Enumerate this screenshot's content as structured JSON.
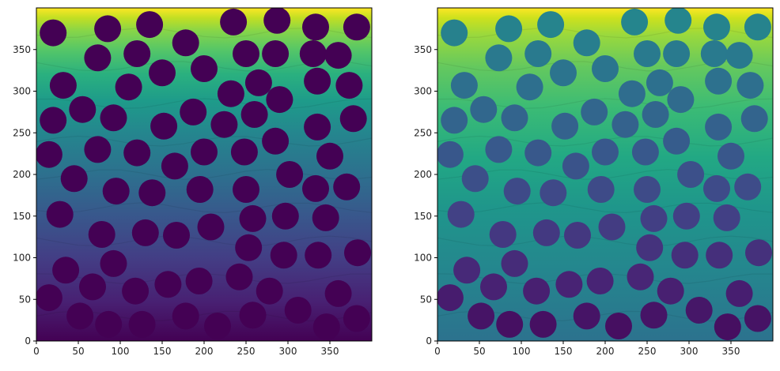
{
  "chart_data": [
    {
      "type": "heatmap",
      "title": "",
      "xlabel": "",
      "ylabel": "",
      "xlim": [
        0,
        400
      ],
      "ylim": [
        0,
        400
      ],
      "x_ticks": [
        "0",
        "50",
        "100",
        "150",
        "200",
        "250",
        "300",
        "350"
      ],
      "y_ticks": [
        "0",
        "50",
        "100",
        "150",
        "200",
        "250",
        "300",
        "350"
      ],
      "x_tick_values": [
        0,
        50,
        100,
        150,
        200,
        250,
        300,
        350
      ],
      "y_tick_values": [
        0,
        50,
        100,
        150,
        200,
        250,
        300,
        350
      ],
      "colormap": "viridis",
      "background": "vertical viridis gradient, dark purple at y=0 to yellow at y=400, segmented into irregular cells",
      "circle_fill": "#440154",
      "circles_rendered_uniform": true,
      "circle_radius": 16,
      "circles": [
        [
          20,
          370
        ],
        [
          85,
          375
        ],
        [
          135,
          380
        ],
        [
          178,
          358
        ],
        [
          235,
          383
        ],
        [
          287,
          385
        ],
        [
          333,
          377
        ],
        [
          382,
          377
        ],
        [
          73,
          340
        ],
        [
          120,
          345
        ],
        [
          250,
          345
        ],
        [
          285,
          345
        ],
        [
          330,
          345
        ],
        [
          360,
          343
        ],
        [
          32,
          307
        ],
        [
          110,
          305
        ],
        [
          150,
          322
        ],
        [
          200,
          327
        ],
        [
          232,
          297
        ],
        [
          265,
          310
        ],
        [
          290,
          290
        ],
        [
          335,
          312
        ],
        [
          373,
          307
        ],
        [
          20,
          265
        ],
        [
          55,
          278
        ],
        [
          92,
          268
        ],
        [
          152,
          258
        ],
        [
          187,
          275
        ],
        [
          224,
          260
        ],
        [
          260,
          272
        ],
        [
          335,
          257
        ],
        [
          378,
          267
        ],
        [
          15,
          224
        ],
        [
          73,
          230
        ],
        [
          120,
          226
        ],
        [
          165,
          210
        ],
        [
          200,
          227
        ],
        [
          248,
          227
        ],
        [
          285,
          240
        ],
        [
          350,
          222
        ],
        [
          45,
          195
        ],
        [
          95,
          180
        ],
        [
          138,
          178
        ],
        [
          195,
          182
        ],
        [
          250,
          182
        ],
        [
          302,
          200
        ],
        [
          333,
          183
        ],
        [
          370,
          185
        ],
        [
          28,
          152
        ],
        [
          258,
          147
        ],
        [
          297,
          150
        ],
        [
          345,
          148
        ],
        [
          78,
          128
        ],
        [
          130,
          130
        ],
        [
          167,
          127
        ],
        [
          208,
          137
        ],
        [
          253,
          112
        ],
        [
          295,
          103
        ],
        [
          336,
          103
        ],
        [
          383,
          106
        ],
        [
          35,
          85
        ],
        [
          92,
          93
        ],
        [
          67,
          65
        ],
        [
          118,
          60
        ],
        [
          157,
          68
        ],
        [
          194,
          72
        ],
        [
          242,
          77
        ],
        [
          278,
          60
        ],
        [
          360,
          57
        ],
        [
          15,
          52
        ],
        [
          52,
          30
        ],
        [
          86,
          20
        ],
        [
          126,
          20
        ],
        [
          178,
          30
        ],
        [
          216,
          18
        ],
        [
          258,
          31
        ],
        [
          312,
          37
        ],
        [
          346,
          17
        ],
        [
          382,
          27
        ]
      ]
    },
    {
      "type": "heatmap",
      "title": "",
      "xlabel": "",
      "ylabel": "",
      "xlim": [
        0,
        400
      ],
      "ylim": [
        0,
        400
      ],
      "x_ticks": [
        "0",
        "50",
        "100",
        "150",
        "200",
        "250",
        "300",
        "350"
      ],
      "y_ticks": [
        "0",
        "50",
        "100",
        "150",
        "200",
        "250",
        "300",
        "350"
      ],
      "x_tick_values": [
        0,
        50,
        100,
        150,
        200,
        250,
        300,
        350
      ],
      "y_tick_values": [
        0,
        50,
        100,
        150,
        200,
        250,
        300,
        350
      ],
      "colormap": "viridis",
      "background": "vertical viridis gradient (compressed toward upper range), segmented into irregular cells",
      "circles_rendered_uniform": false,
      "circle_color_note": "circle fill follows viridis by height, purple at bottom to teal at top",
      "circle_radius": 16,
      "circles": "same positions as left panel"
    }
  ]
}
